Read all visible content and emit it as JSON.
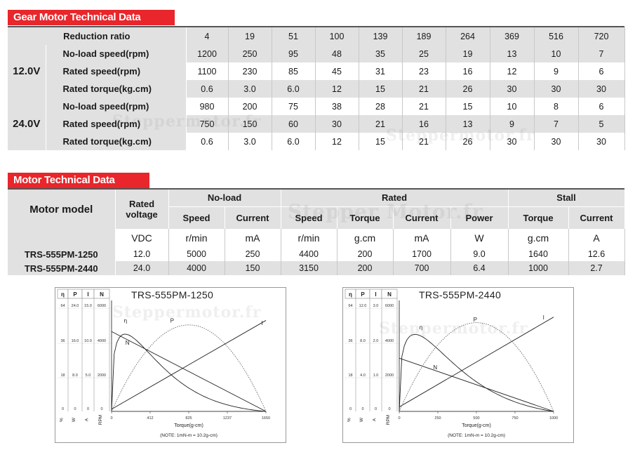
{
  "gear_section": {
    "title": "Gear Motor Technical Data",
    "ratio_label": "Reduction ratio",
    "ratios": [
      "4",
      "19",
      "51",
      "100",
      "139",
      "189",
      "264",
      "369",
      "516",
      "720"
    ],
    "groups": [
      {
        "voltage": "12.0V",
        "rows": [
          {
            "label": "No-load speed(rpm)",
            "values": [
              "1200",
              "250",
              "95",
              "48",
              "35",
              "25",
              "19",
              "13",
              "10",
              "7"
            ]
          },
          {
            "label": "Rated speed(rpm)",
            "values": [
              "1100",
              "230",
              "85",
              "45",
              "31",
              "23",
              "16",
              "12",
              "9",
              "6"
            ]
          },
          {
            "label": "Rated torque(kg.cm)",
            "values": [
              "0.6",
              "3.0",
              "6.0",
              "12",
              "15",
              "21",
              "26",
              "30",
              "30",
              "30"
            ]
          }
        ]
      },
      {
        "voltage": "24.0V",
        "rows": [
          {
            "label": "No-load speed(rpm)",
            "values": [
              "980",
              "200",
              "75",
              "38",
              "28",
              "21",
              "15",
              "10",
              "8",
              "6"
            ]
          },
          {
            "label": "Rated speed(rpm)",
            "values": [
              "750",
              "150",
              "60",
              "30",
              "21",
              "16",
              "13",
              "9",
              "7",
              "5"
            ]
          },
          {
            "label": "Rated torque(kg.cm)",
            "values": [
              "0.6",
              "3.0",
              "6.0",
              "12",
              "15",
              "21",
              "26",
              "30",
              "30",
              "30"
            ]
          }
        ]
      }
    ]
  },
  "motor_section": {
    "title": "Motor Technical Data",
    "headers": {
      "model": "Motor model",
      "rated_voltage": "Rated voltage",
      "no_load": "No-load",
      "rated": "Rated",
      "stall": "Stall",
      "speed": "Speed",
      "current": "Current",
      "torque": "Torque",
      "power": "Power"
    },
    "units": [
      "VDC",
      "r/min",
      "mA",
      "r/min",
      "g.cm",
      "mA",
      "W",
      "g.cm",
      "A"
    ],
    "rows": [
      {
        "model": "TRS-555PM-1250",
        "values": [
          "12.0",
          "5000",
          "250",
          "4400",
          "200",
          "1700",
          "9.0",
          "1640",
          "12.6"
        ]
      },
      {
        "model": "TRS-555PM-2440",
        "values": [
          "24.0",
          "4000",
          "150",
          "3150",
          "200",
          "700",
          "6.4",
          "1000",
          "2.7"
        ]
      }
    ]
  },
  "graphs": [
    {
      "title": "TRS-555PM-1250",
      "col_heads": [
        "η",
        "P",
        "I",
        "N"
      ],
      "bottom_units": [
        "%",
        "W",
        "A",
        "RPM"
      ],
      "rows": [
        [
          "64",
          "24.0",
          "15.0",
          "6000"
        ],
        [
          "36",
          "16.0",
          "10.0",
          "4000"
        ],
        [
          "18",
          "8.0",
          "5.0",
          "2000"
        ],
        [
          "0",
          "0",
          "0",
          "0"
        ]
      ],
      "x_ticks": [
        "0",
        "412",
        "825",
        "1237",
        "1650"
      ],
      "xlabel": "Torque(g-cm)",
      "note": "(NOTE: 1mN-m = 10.2g-cm)",
      "curve_labels": [
        "η",
        "P",
        "I",
        "N"
      ]
    },
    {
      "title": "TRS-555PM-2440",
      "col_heads": [
        "η",
        "P",
        "I",
        "N"
      ],
      "bottom_units": [
        "%",
        "W",
        "A",
        "RPM"
      ],
      "rows": [
        [
          "64",
          "12.0",
          "3.0",
          "6000"
        ],
        [
          "36",
          "8.0",
          "2.0",
          "4000"
        ],
        [
          "18",
          "4.0",
          "1.0",
          "2000"
        ],
        [
          "0",
          "0",
          "0",
          "0"
        ]
      ],
      "x_ticks": [
        "0",
        "250",
        "500",
        "750",
        "1000"
      ],
      "xlabel": "Torque(g-cm)",
      "note": "(NOTE: 1mN-m = 10.2g-cm)",
      "curve_labels": [
        "η",
        "P",
        "I",
        "N"
      ]
    }
  ],
  "watermarks": [
    "Steppermotor.fr",
    "Steppermotor.fr",
    "Steppermotor.fr",
    "Steppermotor.fr",
    "Stepper Motor.fr"
  ]
}
